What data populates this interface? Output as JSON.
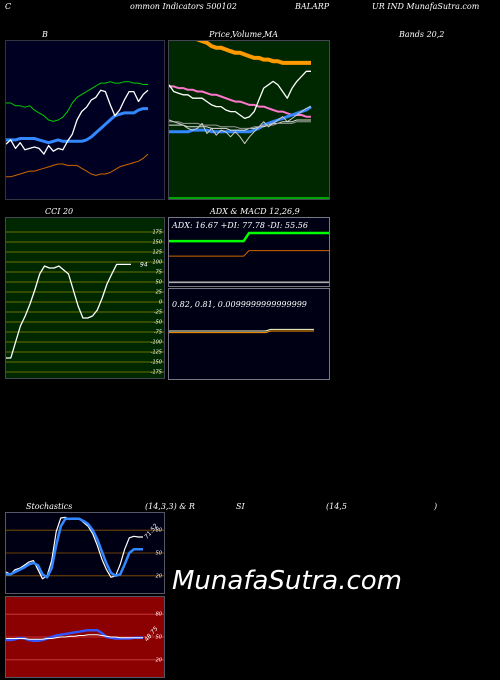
{
  "header": {
    "part1": "C",
    "part2": "ommon  Indicators 500102",
    "part3": "BALARP",
    "part4": "UR IND MunafaSutra.com"
  },
  "panels": {
    "bollinger": {
      "title": "B"
    },
    "price_ma": {
      "title1": "Price,",
      "title2": "Volume,",
      "title3": "MA"
    },
    "bands": {
      "title": "Bands 20,2"
    },
    "cci": {
      "title": "CCI 20",
      "value_label": "94"
    },
    "adx": {
      "title": "ADX  & MACD 12,26,9",
      "readout": "ADX: 16.67  +DI: 77.78  -DI: 55.56"
    },
    "macd": {
      "readout": "0.82,  0.81,  0.0099999999999999"
    },
    "stoch": {
      "title1": "Stochastics",
      "title2": "(14,3,3) & R",
      "title3": "SI",
      "title4": "(14,5",
      "title5": ")",
      "value_label": "71.52"
    },
    "rsi": {
      "value_label": "48.75"
    }
  },
  "watermark": "MunafaSutra.com",
  "colors": {
    "navy_bg": "#000022",
    "green_bg": "#002800",
    "dark_bg": "#000014",
    "red_bg": "#8b0000",
    "orange": "#ff9900",
    "white": "#ffffff",
    "blue": "#3388ff",
    "green": "#00cc00",
    "bright_green": "#00ff00",
    "pink": "#ff77cc",
    "brown": "#cc6600",
    "grid_olive": "#7a7a00"
  },
  "chart_data": [
    {
      "type": "line",
      "panel": "bollinger",
      "ylim": [
        0,
        100
      ],
      "x": [
        0,
        1,
        2,
        3,
        4,
        5,
        6,
        7,
        8,
        9,
        10,
        11,
        12,
        13,
        14,
        15,
        16,
        17,
        18,
        19,
        20,
        21,
        22,
        23,
        24,
        25,
        26,
        27,
        28,
        29,
        30
      ],
      "series": [
        {
          "role": "upper-band",
          "color": "#00cc00",
          "values": [
            62,
            62,
            60,
            60,
            59,
            60,
            57,
            55,
            53,
            50,
            49,
            50,
            52,
            56,
            62,
            66,
            68,
            70,
            72,
            74,
            76,
            76,
            77,
            76,
            76,
            77,
            77,
            76,
            76,
            75,
            75
          ]
        },
        {
          "role": "middle-band",
          "color": "#3388ff",
          "values": [
            36,
            36,
            36,
            37,
            37,
            37,
            37,
            36,
            35,
            34,
            35,
            36,
            35,
            35,
            35,
            35,
            35,
            36,
            38,
            41,
            44,
            47,
            50,
            53,
            54,
            55,
            55,
            55,
            57,
            58,
            58
          ]
        },
        {
          "role": "lower-band",
          "color": "#cc6600",
          "values": [
            10,
            10,
            11,
            12,
            13,
            14,
            14,
            15,
            16,
            17,
            18,
            19,
            19,
            18,
            18,
            18,
            16,
            14,
            12,
            11,
            12,
            12,
            13,
            15,
            17,
            18,
            19,
            20,
            21,
            23,
            26
          ]
        },
        {
          "role": "price",
          "color": "#ffffff",
          "values": [
            33,
            36,
            30,
            34,
            29,
            30,
            31,
            30,
            26,
            32,
            28,
            30,
            29,
            35,
            40,
            50,
            56,
            59,
            64,
            66,
            71,
            70,
            61,
            53,
            57,
            64,
            70,
            70,
            63,
            68,
            71
          ]
        }
      ]
    },
    {
      "type": "line",
      "panel": "price-ma",
      "ylim": [
        0,
        100
      ],
      "x": [
        0,
        1,
        2,
        3,
        4,
        5,
        6,
        7,
        8,
        9,
        10,
        11,
        12,
        13,
        14,
        15,
        16,
        17,
        18,
        19,
        20,
        21,
        22,
        23,
        24,
        25,
        26,
        27,
        28,
        29,
        30
      ],
      "series": [
        {
          "role": "volume-top",
          "color": "#ff9900",
          "values": [
            99,
            99,
            98,
            97,
            97,
            96,
            95,
            94,
            93,
            91,
            90,
            90,
            89,
            88,
            87,
            87,
            86,
            85,
            84,
            84,
            83,
            83,
            82,
            82,
            81,
            81,
            81,
            81,
            81,
            81,
            81
          ]
        },
        {
          "role": "ma-long",
          "color": "#ff77cc",
          "values": [
            67,
            67,
            66,
            66,
            65,
            65,
            64,
            64,
            63,
            62,
            62,
            61,
            60,
            59,
            58,
            58,
            57,
            56,
            56,
            55,
            55,
            54,
            53,
            52,
            52,
            51,
            50,
            50,
            50,
            49,
            49
          ]
        },
        {
          "role": "price",
          "color": "#ffffff",
          "values": [
            68,
            64,
            63,
            62,
            62,
            60,
            60,
            60,
            58,
            56,
            55,
            55,
            53,
            52,
            52,
            50,
            48,
            49,
            52,
            59,
            66,
            68,
            70,
            68,
            64,
            60,
            66,
            70,
            73,
            76,
            76
          ]
        },
        {
          "role": "ma-short",
          "color": "#3388ff",
          "values": [
            40,
            40,
            40,
            40,
            40,
            41,
            41,
            41,
            41,
            40,
            40,
            40,
            40,
            40,
            40,
            40,
            40,
            40,
            41,
            42,
            44,
            45,
            46,
            47,
            48,
            49,
            50,
            51,
            52,
            53,
            55
          ]
        },
        {
          "role": "ma-mid",
          "color": "#dddddd",
          "values": [
            44,
            44,
            44,
            44,
            43,
            43,
            43,
            43,
            43,
            42,
            42,
            42,
            42,
            41,
            41,
            41,
            41,
            42,
            42,
            43,
            43,
            44,
            45,
            45,
            46,
            46,
            46,
            47,
            47,
            47,
            47
          ]
        },
        {
          "role": "ma-long2",
          "color": "#999999",
          "values": [
            46,
            46,
            46,
            45,
            45,
            45,
            45,
            44,
            44,
            44,
            44,
            43,
            43,
            43,
            43,
            42,
            42,
            42,
            43,
            43,
            44,
            44,
            44,
            45,
            45,
            45,
            45,
            46,
            46,
            46,
            46
          ]
        },
        {
          "role": "close",
          "color": "#cccccc",
          "values": [
            47,
            46,
            45,
            44,
            42,
            41,
            42,
            45,
            39,
            42,
            38,
            41,
            40,
            37,
            40,
            37,
            33,
            37,
            40,
            43,
            46,
            43,
            45,
            47,
            49,
            46,
            48,
            50,
            52,
            54,
            55
          ]
        }
      ]
    },
    {
      "type": "line",
      "panel": "cci",
      "ylim": [
        -175,
        175
      ],
      "yticks": [
        175,
        150,
        125,
        100,
        75,
        50,
        25,
        0,
        -25,
        -50,
        -75,
        -100,
        -125,
        -150,
        -175
      ],
      "x": [
        0,
        1,
        2,
        3,
        4,
        5,
        6,
        7,
        8,
        9,
        10,
        11,
        12,
        13,
        14,
        15,
        16,
        17,
        18,
        19,
        20,
        21,
        22,
        23,
        24,
        25,
        26
      ],
      "series": [
        {
          "role": "cci",
          "color": "#ffffff",
          "values": [
            -140,
            -140,
            -100,
            -60,
            -35,
            -5,
            30,
            70,
            90,
            85,
            85,
            90,
            80,
            70,
            30,
            -10,
            -40,
            -40,
            -35,
            -20,
            10,
            45,
            70,
            94,
            94,
            94,
            94
          ]
        }
      ]
    },
    {
      "type": "line",
      "panel": "adx",
      "ylim": [
        0,
        100
      ],
      "x": [
        0,
        1,
        2,
        3,
        4,
        5,
        6,
        7,
        8,
        9,
        10,
        11,
        12,
        13,
        14,
        15,
        16,
        17,
        18,
        19,
        20,
        21,
        22,
        23,
        24,
        25,
        26,
        27,
        28,
        29,
        30
      ],
      "series": [
        {
          "role": "plus-di",
          "color": "#00ff00",
          "values": [
            66,
            66,
            66,
            66,
            66,
            66,
            66,
            66,
            66,
            66,
            66,
            66,
            66,
            66,
            66,
            78,
            78,
            78,
            78,
            78,
            78,
            78,
            78,
            78,
            78,
            78,
            78,
            78,
            78,
            78,
            78
          ]
        },
        {
          "role": "minus-di",
          "color": "#cc6600",
          "values": [
            44,
            44,
            44,
            44,
            44,
            44,
            44,
            44,
            44,
            44,
            44,
            44,
            44,
            44,
            44,
            52,
            52,
            52,
            52,
            52,
            52,
            52,
            52,
            52,
            52,
            52,
            52,
            52,
            52,
            52,
            52
          ]
        },
        {
          "role": "adx",
          "color": "#aaaaaa",
          "values": [
            5,
            5,
            5,
            5,
            5,
            5,
            5,
            5,
            5,
            5,
            5,
            5,
            5,
            5,
            5,
            5,
            5,
            5,
            5,
            5,
            5,
            5,
            5,
            5,
            5,
            5,
            5,
            5,
            5,
            5,
            5
          ]
        }
      ]
    },
    {
      "type": "line",
      "panel": "macd",
      "ylim": [
        0,
        100
      ],
      "x": [
        0,
        1,
        2,
        3,
        4,
        5,
        6,
        7,
        8,
        9,
        10,
        11,
        12,
        13,
        14,
        15,
        16,
        17,
        18,
        19,
        20,
        21,
        22,
        23,
        24,
        25,
        26,
        27,
        28,
        29,
        30
      ],
      "series": [
        {
          "role": "macd",
          "color": "#ffffcc",
          "values": [
            30,
            30,
            30,
            30,
            30,
            30,
            30,
            30,
            30,
            30,
            30,
            30,
            30,
            30,
            30,
            30,
            30,
            30,
            30,
            30,
            30,
            31,
            31,
            31,
            31,
            31,
            31,
            31,
            31,
            31,
            31
          ]
        },
        {
          "role": "signal",
          "color": "#ff9900",
          "values": [
            29,
            29,
            29,
            29,
            29,
            29,
            29,
            29,
            29,
            29,
            29,
            29,
            29,
            29,
            29,
            29,
            29,
            29,
            29,
            29,
            29,
            30,
            30,
            30,
            30,
            30,
            30,
            30,
            30,
            30,
            30
          ]
        }
      ]
    },
    {
      "type": "line",
      "panel": "stochastics",
      "ylim": [
        0,
        100
      ],
      "yticks": [
        80,
        50,
        20
      ],
      "x": [
        0,
        1,
        2,
        3,
        4,
        5,
        6,
        7,
        8,
        9,
        10,
        11,
        12,
        13,
        14,
        15,
        16,
        17,
        18,
        19,
        20,
        21,
        22,
        23,
        24,
        25,
        26,
        27,
        28,
        29,
        30
      ],
      "series": [
        {
          "role": "k",
          "color": "#ffffff",
          "values": [
            25,
            22,
            28,
            30,
            34,
            38,
            40,
            28,
            16,
            20,
            40,
            78,
            96,
            97,
            94,
            96,
            95,
            90,
            85,
            75,
            60,
            42,
            28,
            18,
            20,
            35,
            55,
            70,
            72,
            71,
            71
          ]
        },
        {
          "role": "d",
          "color": "#3388ff",
          "values": [
            22,
            22,
            25,
            28,
            31,
            35,
            37,
            34,
            22,
            18,
            30,
            60,
            85,
            95,
            95,
            95,
            95,
            92,
            88,
            80,
            68,
            52,
            36,
            24,
            20,
            22,
            35,
            50,
            55,
            55,
            55
          ]
        }
      ]
    },
    {
      "type": "line",
      "panel": "rsi",
      "ylim": [
        0,
        100
      ],
      "yticks": [
        80,
        50,
        20
      ],
      "x": [
        0,
        1,
        2,
        3,
        4,
        5,
        6,
        7,
        8,
        9,
        10,
        11,
        12,
        13,
        14,
        15,
        16,
        17,
        18,
        19,
        20,
        21,
        22,
        23,
        24,
        25,
        26,
        27,
        28,
        29,
        30
      ],
      "series": [
        {
          "role": "rsi",
          "color": "#3355ff",
          "values": [
            46,
            46,
            47,
            49,
            48,
            46,
            45,
            45,
            46,
            48,
            50,
            52,
            53,
            54,
            55,
            56,
            57,
            58,
            59,
            59,
            59,
            55,
            50,
            49,
            48,
            48,
            48,
            48,
            49,
            49,
            49
          ]
        },
        {
          "role": "smooth",
          "color": "#ffffff",
          "values": [
            48,
            48,
            48,
            48,
            48,
            47,
            47,
            47,
            47,
            48,
            48,
            49,
            50,
            50,
            51,
            51,
            52,
            52,
            53,
            53,
            53,
            52,
            51,
            50,
            50,
            49,
            49,
            49,
            49,
            49,
            49
          ]
        }
      ]
    }
  ]
}
